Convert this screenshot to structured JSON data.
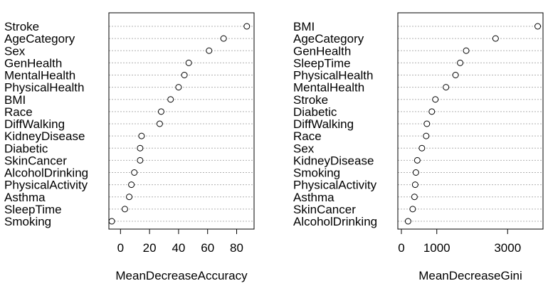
{
  "chart_data": [
    {
      "type": "scatter",
      "style": "dotchart",
      "xlabel": "MeanDecreaseAccuracy",
      "ylabel": "",
      "grid": "dotted horizontal guide lines",
      "xlim": [
        -8,
        92
      ],
      "xticks": [
        0,
        20,
        40,
        60,
        80
      ],
      "categories": [
        "Stroke",
        "AgeCategory",
        "Sex",
        "GenHealth",
        "MentalHealth",
        "PhysicalHealth",
        "BMI",
        "Race",
        "DiffWalking",
        "KidneyDisease",
        "Diabetic",
        "SkinCancer",
        "AlcoholDrinking",
        "PhysicalActivity",
        "Asthma",
        "SleepTime",
        "Smoking"
      ],
      "values": [
        87,
        71,
        61,
        47,
        44,
        40,
        34.5,
        28,
        27,
        14.5,
        13.5,
        13.5,
        9.5,
        7.5,
        6,
        3,
        -6
      ]
    },
    {
      "type": "scatter",
      "style": "dotchart",
      "xlabel": "MeanDecreaseGini",
      "ylabel": "",
      "grid": "dotted horizontal guide lines",
      "xlim": [
        -100,
        4000
      ],
      "xticks": [
        0,
        1000,
        3000
      ],
      "categories": [
        "BMI",
        "AgeCategory",
        "GenHealth",
        "SleepTime",
        "PhysicalHealth",
        "MentalHealth",
        "Stroke",
        "Diabetic",
        "DiffWalking",
        "Race",
        "Sex",
        "KidneyDisease",
        "Smoking",
        "PhysicalActivity",
        "Asthma",
        "SkinCancer",
        "AlcoholDrinking"
      ],
      "values": [
        3850,
        2660,
        1830,
        1660,
        1530,
        1260,
        960,
        860,
        720,
        700,
        580,
        450,
        410,
        390,
        370,
        320,
        190
      ]
    }
  ]
}
